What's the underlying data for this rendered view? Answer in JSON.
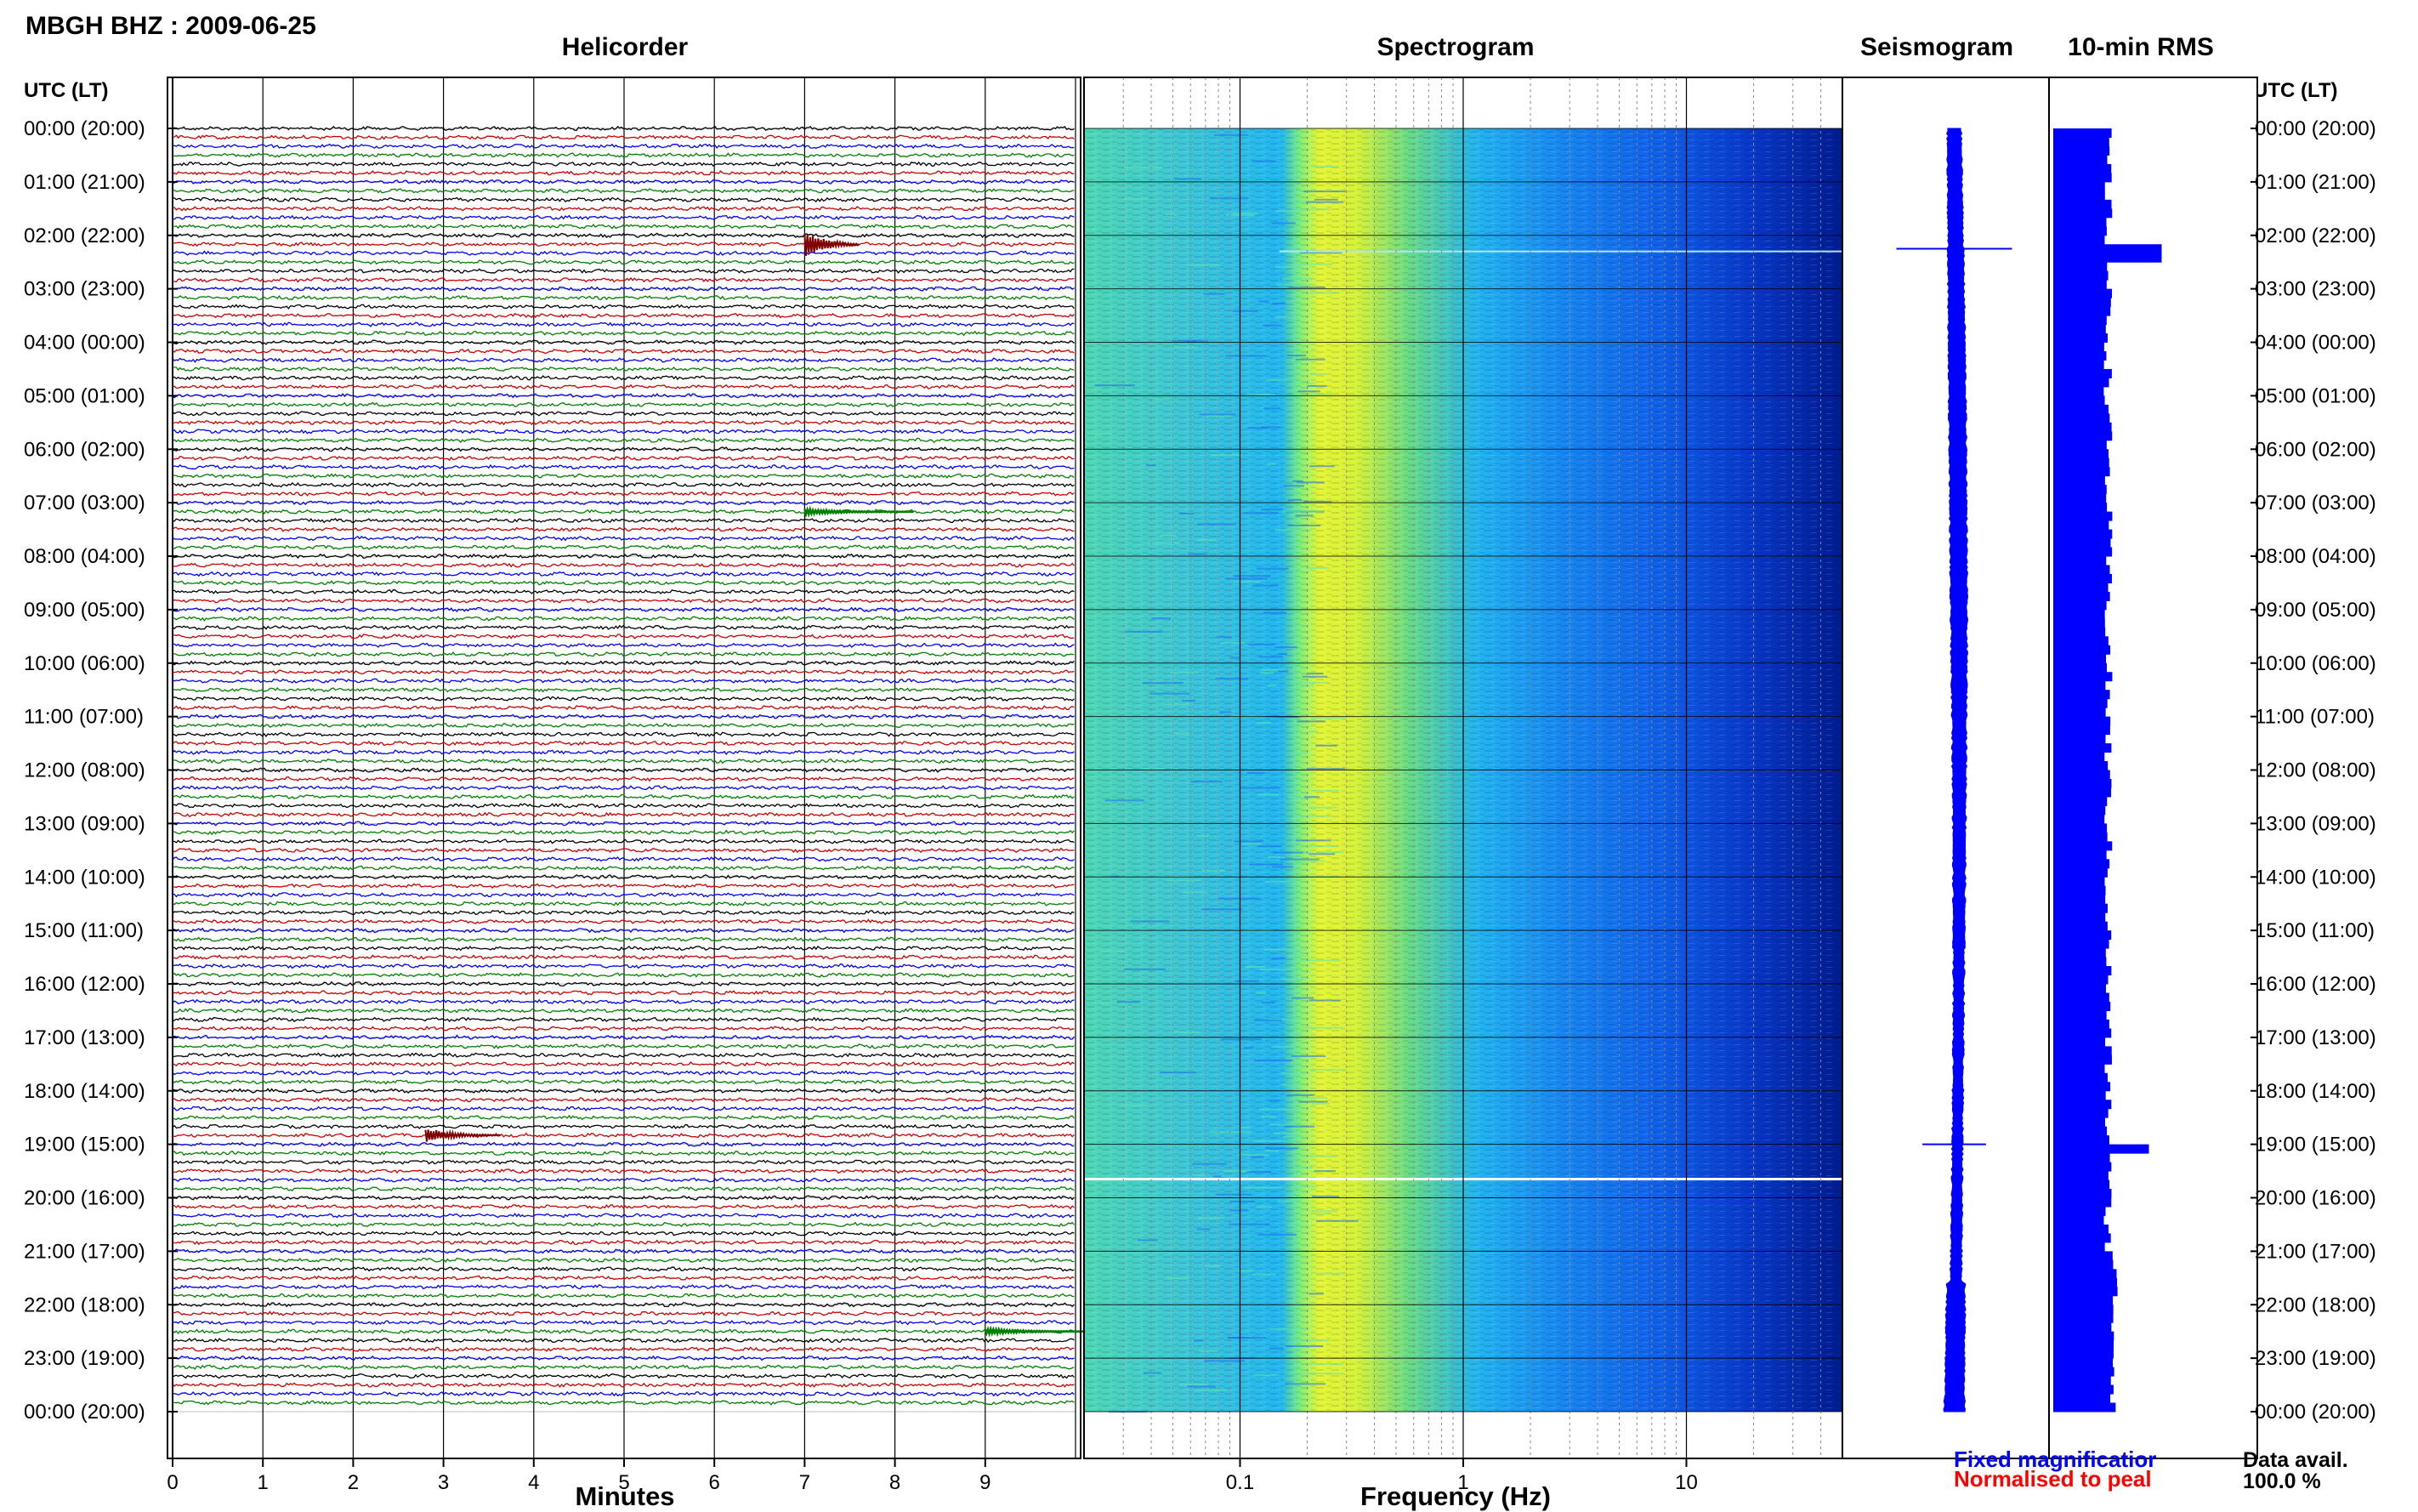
{
  "header": {
    "station_title": "MBGH BHZ : 2009-06-25"
  },
  "panels": {
    "helicorder": "Helicorder",
    "spectrogram": "Spectrogram",
    "seismogram": "Seismogram",
    "rms": "10-min RMS"
  },
  "axes": {
    "left_header": "UTC (LT)",
    "right_header": "UTC (LT)",
    "time_labels": [
      "00:00 (20:00)",
      "01:00 (21:00)",
      "02:00 (22:00)",
      "03:00 (23:00)",
      "04:00 (00:00)",
      "05:00 (01:00)",
      "06:00 (02:00)",
      "07:00 (03:00)",
      "08:00 (04:00)",
      "09:00 (05:00)",
      "10:00 (06:00)",
      "11:00 (07:00)",
      "12:00 (08:00)",
      "13:00 (09:00)",
      "14:00 (10:00)",
      "15:00 (11:00)",
      "16:00 (12:00)",
      "17:00 (13:00)",
      "18:00 (14:00)",
      "19:00 (15:00)",
      "20:00 (16:00)",
      "21:00 (17:00)",
      "22:00 (18:00)",
      "23:00 (19:00)",
      "00:00 (20:00)"
    ],
    "minutes_label": "Minutes",
    "minutes_ticks": [
      "0",
      "1",
      "2",
      "3",
      "4",
      "5",
      "6",
      "7",
      "8",
      "9"
    ],
    "frequency_label": "Frequency (Hz)",
    "frequency_ticks": [
      "0.1",
      "1",
      "10"
    ]
  },
  "legend": {
    "fixed": "Fixed magnificatior",
    "normalised": "Normalised to peal"
  },
  "data_availability": {
    "label": "Data avail.",
    "value": "100.0 %"
  },
  "chart_data": [
    {
      "type": "line",
      "title": "Helicorder",
      "xlabel": "Minutes",
      "xlim": [
        0,
        10
      ],
      "ylim_hours_utc": [
        0,
        24
      ],
      "rows_per_hour": 6,
      "trace_colors": [
        "#000000",
        "#cc0000",
        "#0000ff",
        "#008000"
      ],
      "events": [
        {
          "hour_utc": 2.17,
          "minute": 7.0,
          "color": "#800000",
          "strength": "large"
        },
        {
          "hour_utc": 18.83,
          "minute": 2.8,
          "color": "#800000",
          "strength": "medium"
        },
        {
          "hour_utc": 7.17,
          "minute": 7.0,
          "color": "#008000",
          "strength": "small"
        },
        {
          "hour_utc": 22.5,
          "minute": 9.0,
          "color": "#008000",
          "strength": "small"
        }
      ]
    },
    {
      "type": "heatmap",
      "title": "Spectrogram",
      "xlabel": "Frequency (Hz)",
      "xscale": "log",
      "xlim": [
        0.02,
        50
      ],
      "ylim_hours_utc": [
        0,
        24
      ],
      "colormap": [
        "#00008b",
        "#0000ff",
        "#1e90ff",
        "#00ffff",
        "#7fff7f",
        "#ffff00"
      ],
      "peak_band_hz": [
        0.2,
        0.5
      ]
    },
    {
      "type": "line",
      "title": "Seismogram",
      "ylim_hours_utc": [
        0,
        24
      ],
      "color": "#0000ff",
      "spikes": [
        {
          "hour_utc": 2.25,
          "amplitude": 1.0
        },
        {
          "hour_utc": 19.0,
          "amplitude": 0.55
        }
      ]
    },
    {
      "type": "bar",
      "title": "10-min RMS",
      "orientation": "horizontal",
      "ylim_hours_utc": [
        0,
        24
      ],
      "color": "#0000ff",
      "typical_width": 0.45,
      "peaks": [
        {
          "hour_utc": 2.25,
          "value": 0.85
        },
        {
          "hour_utc": 19.0,
          "value": 0.75
        }
      ]
    }
  ]
}
